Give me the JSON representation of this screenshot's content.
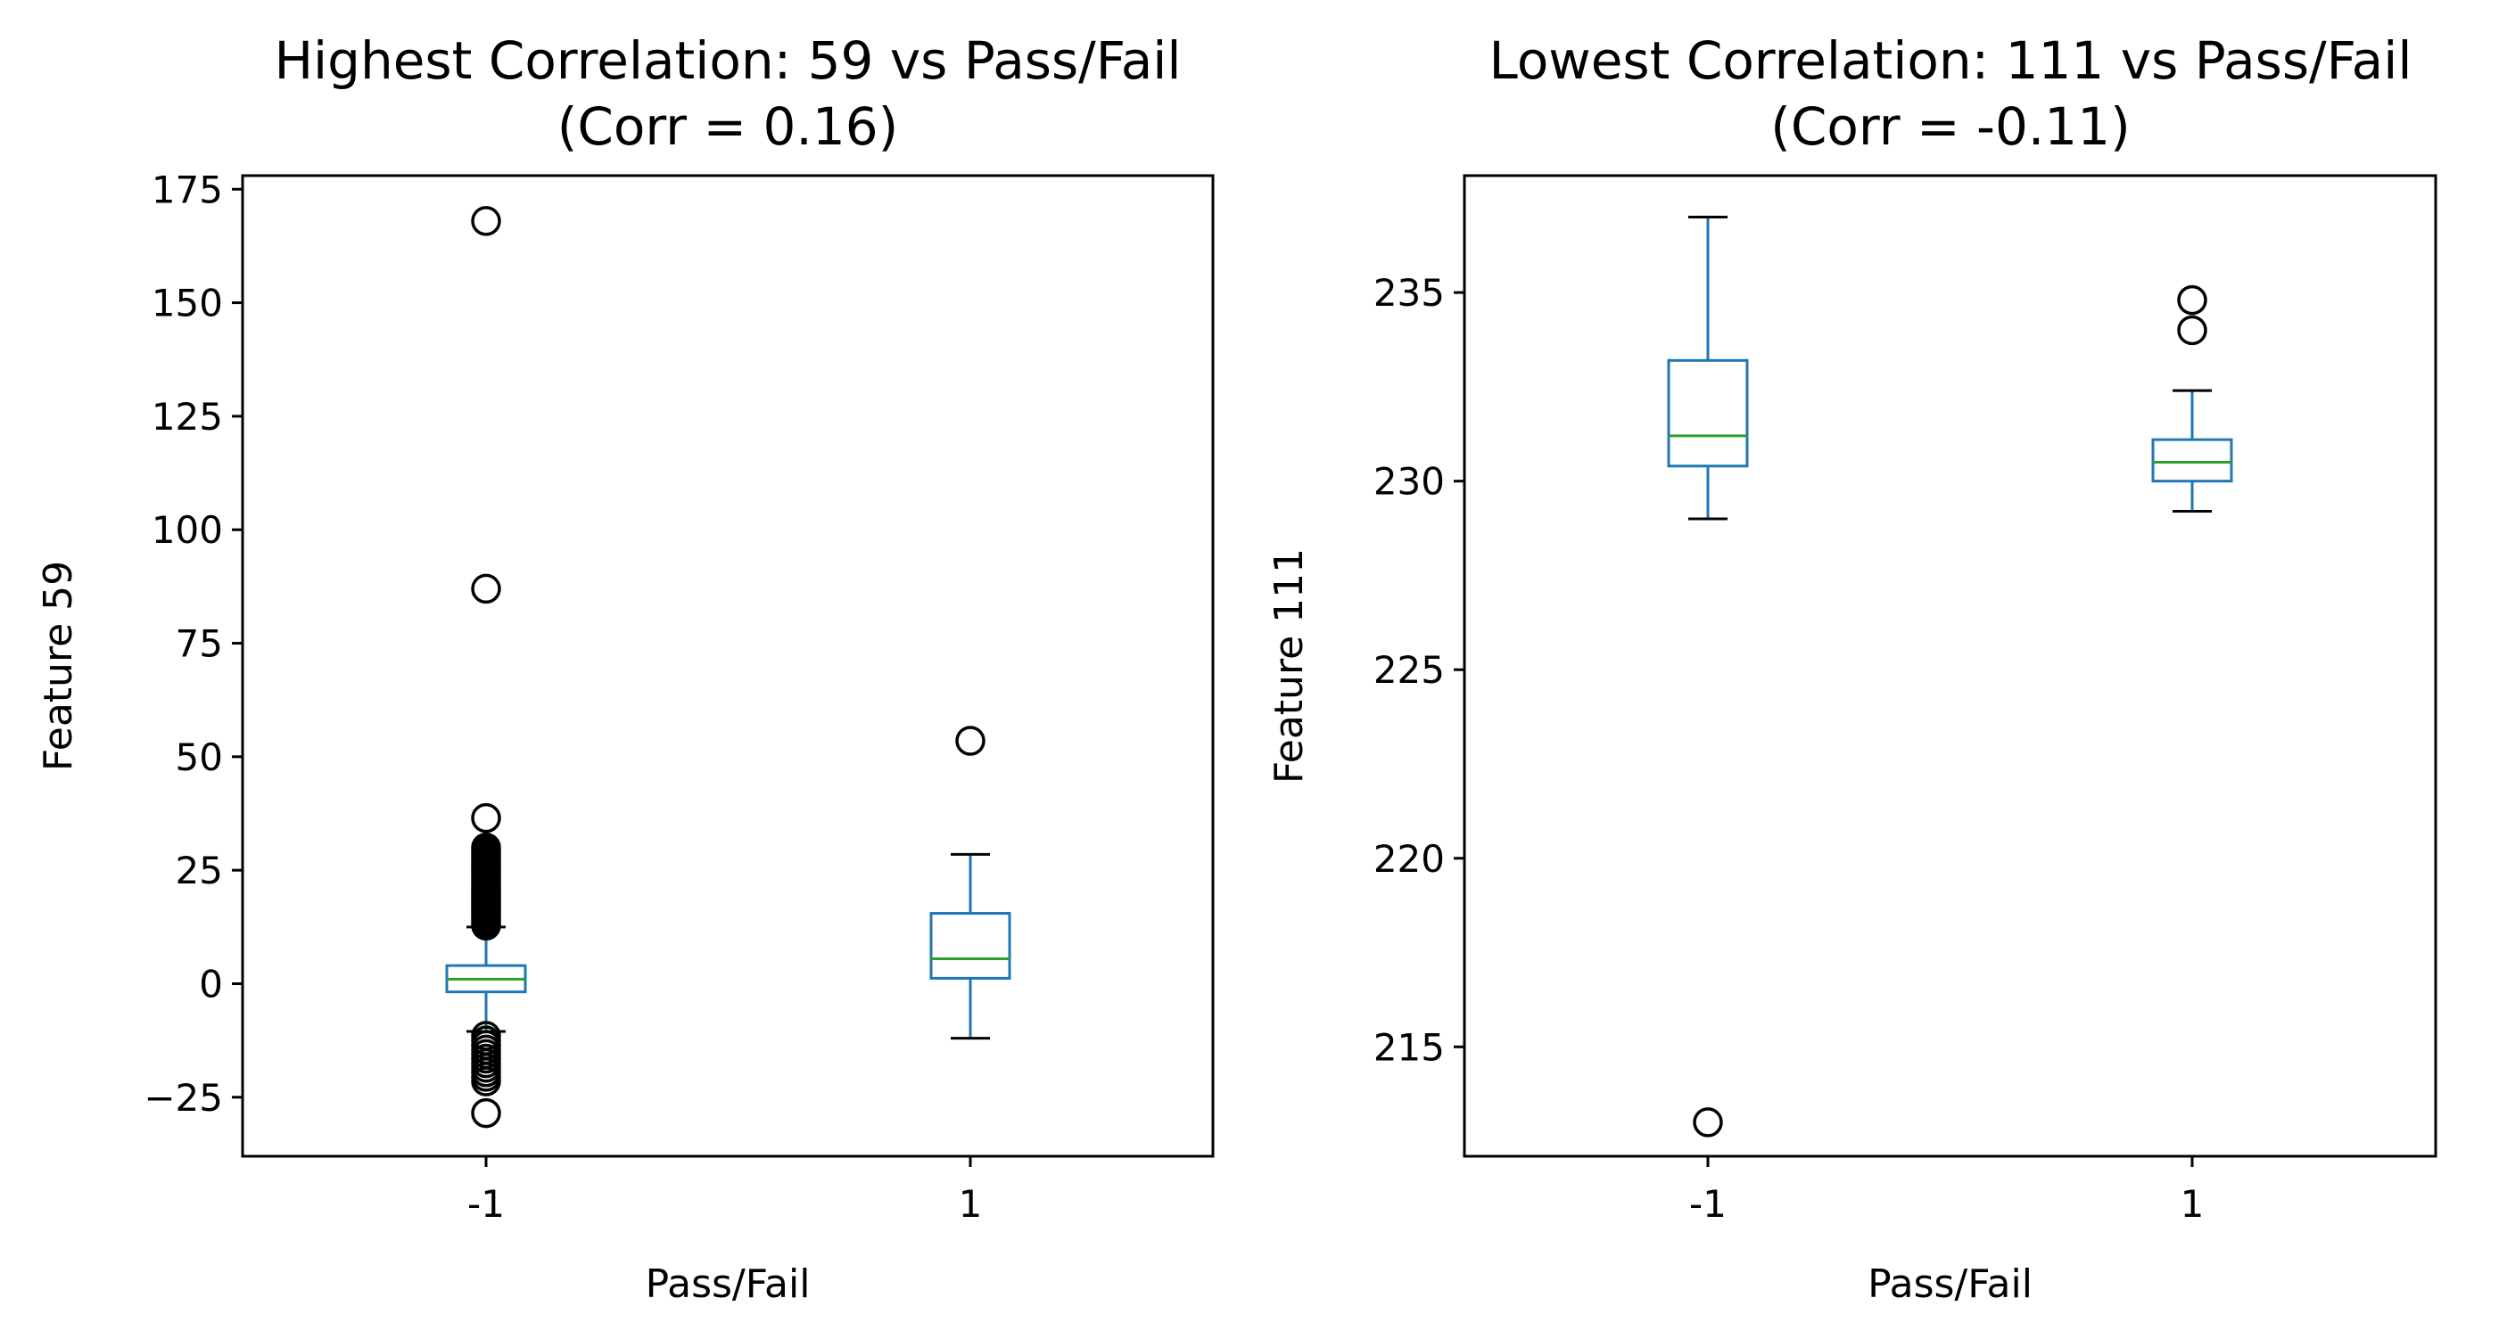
{
  "chart_data": [
    {
      "type": "box",
      "title_line1": "Highest Correlation: 59 vs Pass/Fail",
      "title_line2": "(Corr = 0.16)",
      "xlabel": "Pass/Fail",
      "ylabel": "Feature 59",
      "categories": [
        "-1",
        "1"
      ],
      "yticks": [
        -25,
        0,
        25,
        50,
        75,
        100,
        125,
        150,
        175
      ],
      "ytick_labels": [
        "−25",
        "0",
        "25",
        "50",
        "75",
        "100",
        "125",
        "150",
        "175"
      ],
      "ylim": [
        -38,
        178
      ],
      "colors": {
        "box": "#1f77b4",
        "median": "#2ca02c",
        "cap": "#000000",
        "flier": "#000000"
      },
      "boxes": [
        {
          "category": "-1",
          "whisker_low": -10.5,
          "q1": -1.8,
          "median": 1.0,
          "q3": 4.0,
          "whisker_high": 12.5,
          "fliers": [
            168,
            87,
            36.5,
            30,
            29.5,
            29,
            28.5,
            28,
            27.5,
            27,
            26.5,
            26,
            25.5,
            25,
            24.5,
            24,
            23.5,
            23,
            22.5,
            22,
            21.5,
            21,
            20.5,
            20,
            19.5,
            19,
            18.5,
            18,
            17.5,
            17,
            16.5,
            16,
            15.5,
            15,
            14.5,
            14,
            13.5,
            13,
            12.8,
            -11.5,
            -12.5,
            -13.5,
            -14.5,
            -15.5,
            -16.5,
            -17.5,
            -18.5,
            -19.5,
            -20.5,
            -21.5,
            -28.5
          ]
        },
        {
          "category": "1",
          "whisker_low": -12,
          "q1": 1.2,
          "median": 5.5,
          "q3": 15.5,
          "whisker_high": 28.5,
          "fliers": [
            53.5
          ]
        }
      ]
    },
    {
      "type": "box",
      "title_line1": "Lowest Correlation: 111 vs Pass/Fail",
      "title_line2": "(Corr = -0.11)",
      "xlabel": "Pass/Fail",
      "ylabel": "Feature 111",
      "categories": [
        "-1",
        "1"
      ],
      "yticks": [
        215,
        220,
        225,
        230,
        235
      ],
      "ytick_labels": [
        "215",
        "220",
        "225",
        "230",
        "235"
      ],
      "ylim": [
        212.1,
        238.1
      ],
      "colors": {
        "box": "#1f77b4",
        "median": "#2ca02c",
        "cap": "#000000",
        "flier": "#000000"
      },
      "boxes": [
        {
          "category": "-1",
          "whisker_low": 229.0,
          "q1": 230.4,
          "median": 231.2,
          "q3": 233.2,
          "whisker_high": 237.0,
          "fliers": [
            213.0
          ]
        },
        {
          "category": "1",
          "whisker_low": 229.2,
          "q1": 230.0,
          "median": 230.5,
          "q3": 231.1,
          "whisker_high": 232.4,
          "fliers": [
            234.8,
            234.0
          ]
        }
      ]
    }
  ]
}
